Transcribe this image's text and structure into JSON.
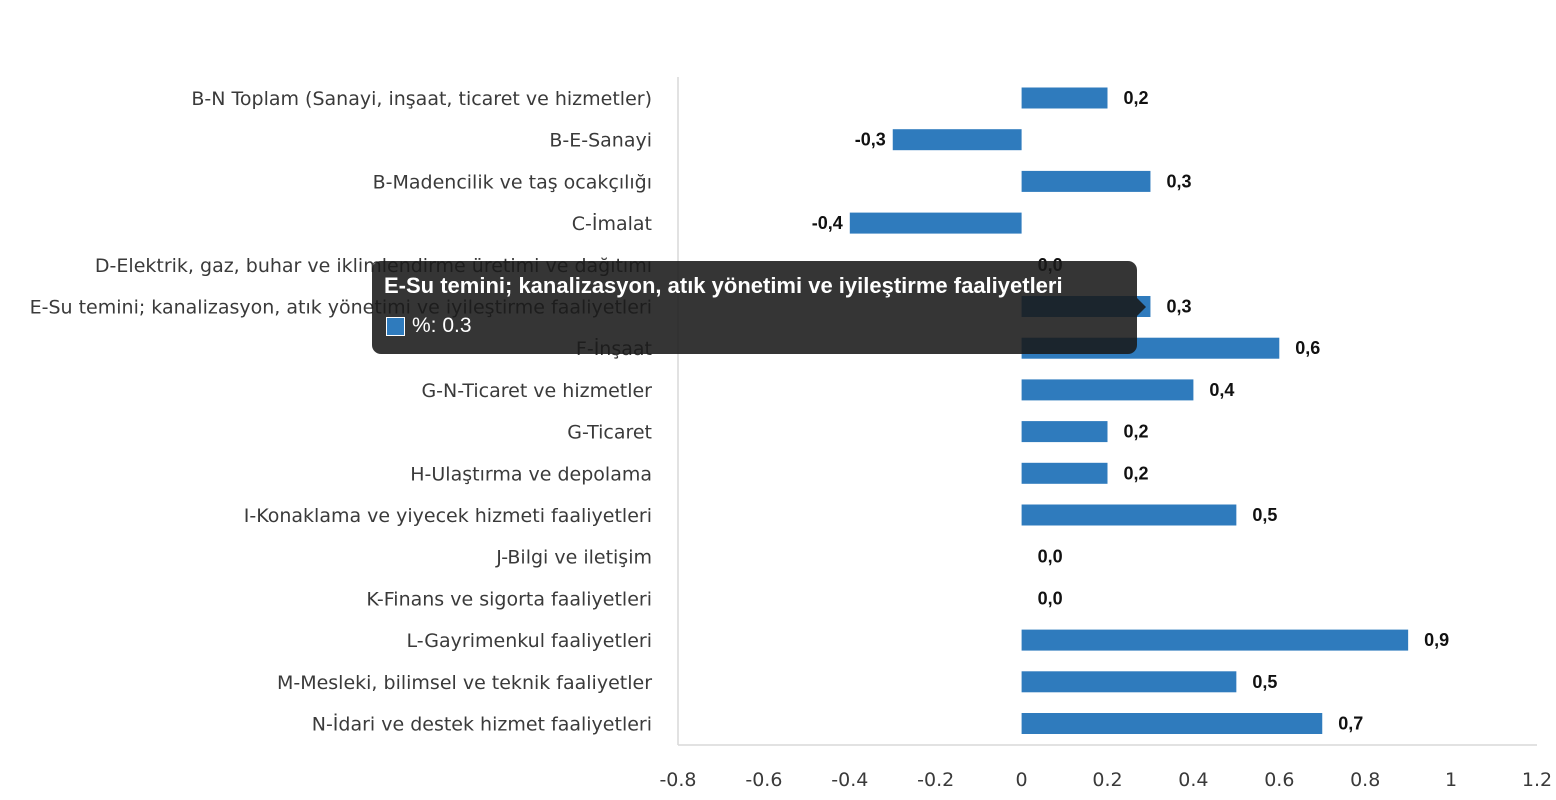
{
  "chart_data": {
    "type": "bar",
    "orientation": "horizontal",
    "categories": [
      "B-N Toplam (Sanayi, inşaat, ticaret ve hizmetler)",
      "B-E-Sanayi",
      "B-Madencilik ve taş ocakçılığı",
      "C-İmalat",
      "D-Elektrik, gaz, buhar ve iklimlendirme üretimi ve dağıtımı",
      "E-Su temini; kanalizasyon, atık yönetimi ve iyileştirme faaliyetleri",
      "F-İnşaat",
      "G-N-Ticaret ve hizmetler",
      "G-Ticaret",
      "H-Ulaştırma ve depolama",
      "I-Konaklama ve yiyecek hizmeti faaliyetleri",
      "J-Bilgi ve iletişim",
      "K-Finans ve sigorta faaliyetleri",
      "L-Gayrimenkul faaliyetleri",
      "M-Mesleki, bilimsel ve teknik faaliyetler",
      "N-İdari ve destek hizmet faaliyetleri"
    ],
    "values": [
      0.2,
      -0.3,
      0.3,
      -0.4,
      0.0,
      0.3,
      0.6,
      0.4,
      0.2,
      0.2,
      0.5,
      0.0,
      0.0,
      0.9,
      0.5,
      0.7
    ],
    "data_labels": [
      "0,2",
      "-0,3",
      "0,3",
      "-0,4",
      "0,0",
      "0,3",
      "0,6",
      "0,4",
      "0,2",
      "0,2",
      "0,5",
      "0,0",
      "0,0",
      "0,9",
      "0,5",
      "0,7"
    ],
    "xlim": [
      -0.8,
      1.2
    ],
    "x_ticks": [
      "-0.8",
      "-0.6",
      "-0.4",
      "-0.2",
      "0",
      "0.2",
      "0.4",
      "0.6",
      "0.8",
      "1",
      "1.2"
    ],
    "x_tick_values": [
      -0.8,
      -0.6,
      -0.4,
      -0.2,
      0,
      0.2,
      0.4,
      0.6,
      0.8,
      1,
      1.2
    ],
    "grid": false,
    "legend": "none",
    "bar_color": "#2f7bbd"
  },
  "tooltip": {
    "title": "E-Su temini; kanalizasyon, atık yönetimi ve iyileştirme faaliyetleri",
    "series_text": "%: 0.3",
    "swatch_color": "#2f7bbd"
  }
}
